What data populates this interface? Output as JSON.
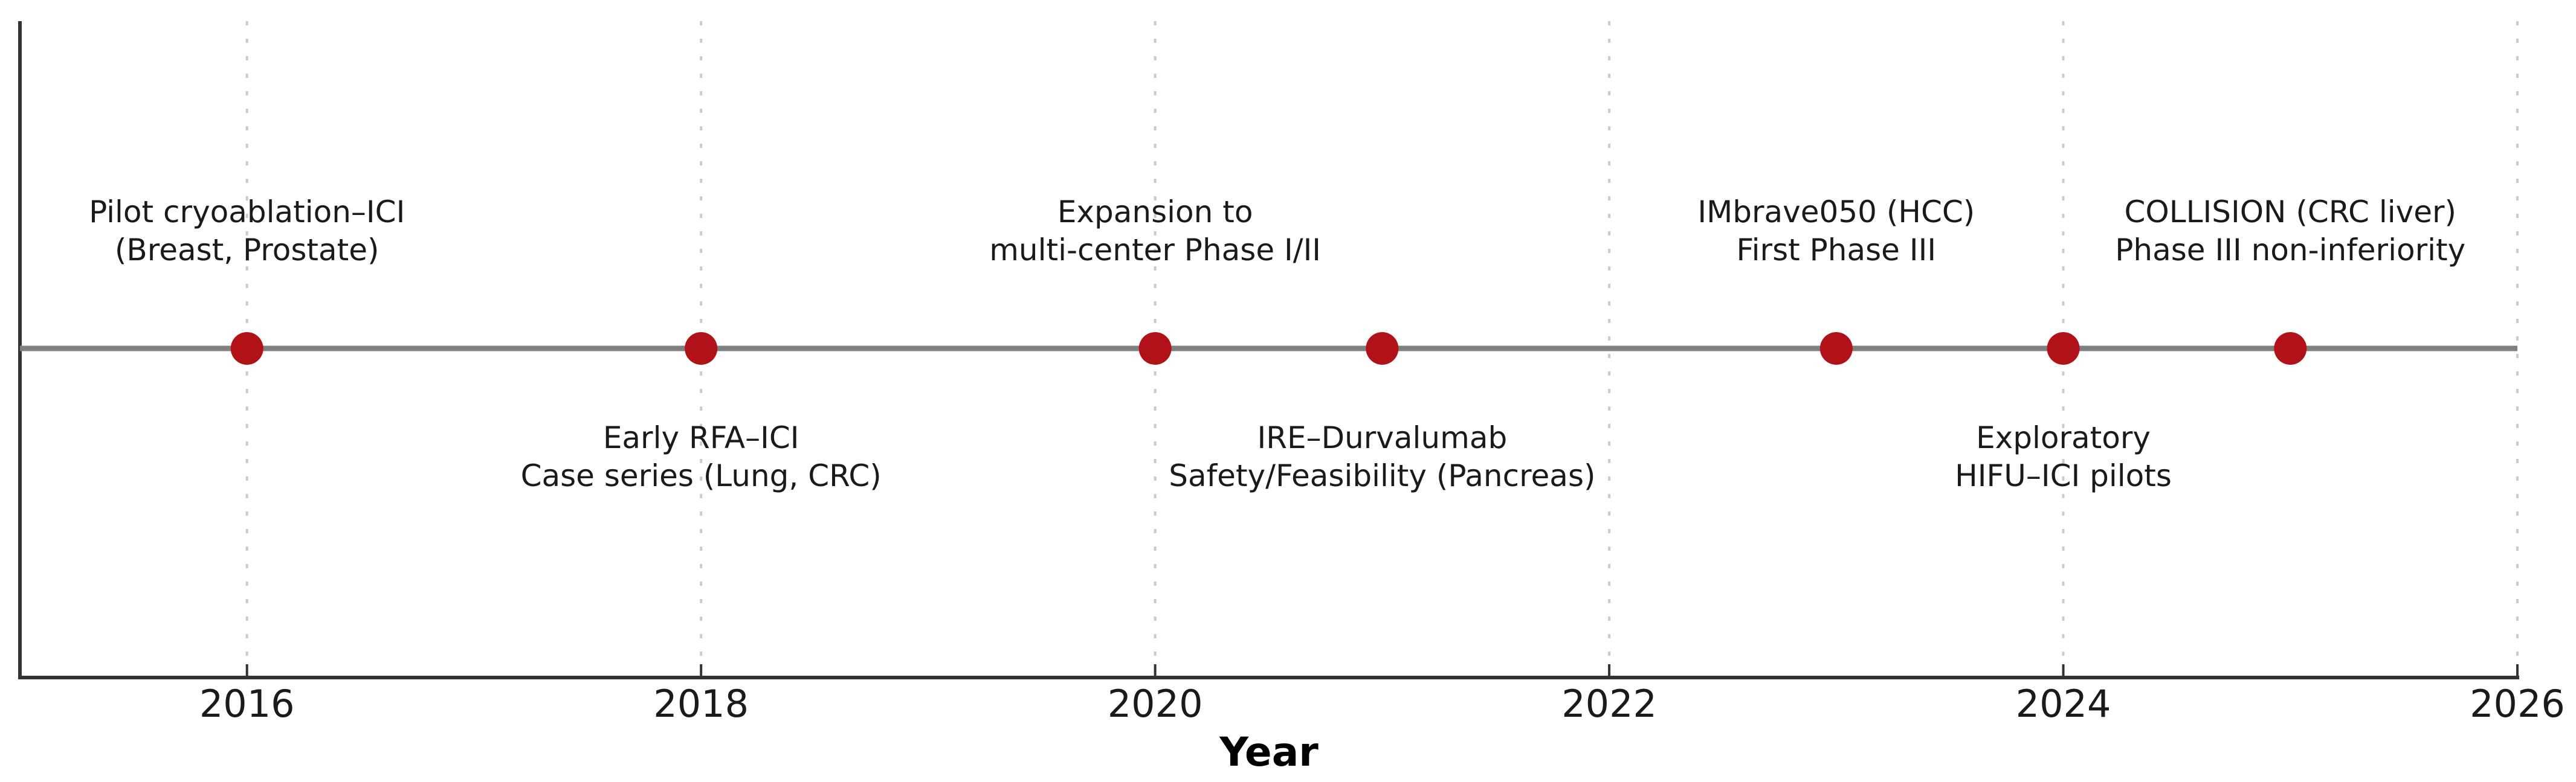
{
  "chart_data": {
    "type": "scatter",
    "subtype": "timeline",
    "title": "",
    "xlabel": "Year",
    "ylabel": "",
    "xlim": [
      2015,
      2026
    ],
    "x_ticks": [
      2016,
      2018,
      2020,
      2022,
      2024,
      2026
    ],
    "grid": "vertical dashed at x ticks",
    "legend": "none",
    "baseline_value": 0.5,
    "events": [
      {
        "year": 2016,
        "side": "above",
        "label_lines": [
          "Pilot cryoablation–ICI",
          "(Breast, Prostate)"
        ]
      },
      {
        "year": 2018,
        "side": "below",
        "label_lines": [
          "Early RFA–ICI",
          "Case series (Lung, CRC)"
        ]
      },
      {
        "year": 2020,
        "side": "above",
        "label_lines": [
          "Expansion to",
          "multi-center Phase I/II"
        ]
      },
      {
        "year": 2021,
        "side": "below",
        "label_lines": [
          "IRE–Durvalumab",
          "Safety/Feasibility (Pancreas)"
        ]
      },
      {
        "year": 2023,
        "side": "above",
        "label_lines": [
          "IMbrave050 (HCC)",
          "First Phase III"
        ]
      },
      {
        "year": 2024,
        "side": "below",
        "label_lines": [
          "Exploratory",
          "HIFU–ICI pilots"
        ]
      },
      {
        "year": 2025,
        "side": "above",
        "label_lines": [
          "COLLISION (CRC liver)",
          "Phase III non-inferiority"
        ]
      }
    ],
    "colors": {
      "dot": "#B01217",
      "timeline_line": "#808080",
      "gridline": "#CBCBCB",
      "axis_spine": "#333333",
      "text": "#1A1A1A"
    }
  }
}
